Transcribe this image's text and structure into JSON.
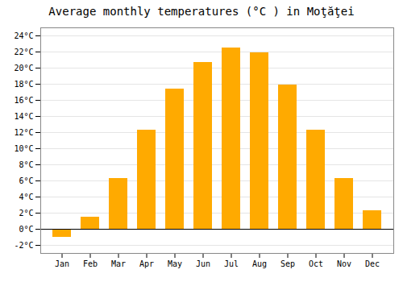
{
  "chart_data": {
    "type": "bar",
    "title": "Average monthly temperatures (°C ) in Moţăţei",
    "categories": [
      "Jan",
      "Feb",
      "Mar",
      "Apr",
      "May",
      "Jun",
      "Jul",
      "Aug",
      "Sep",
      "Oct",
      "Nov",
      "Dec"
    ],
    "values": [
      -1.0,
      1.5,
      6.3,
      12.3,
      17.4,
      20.7,
      22.5,
      21.9,
      17.9,
      12.3,
      6.3,
      2.3
    ],
    "color": "#FFAA00",
    "ylim": [
      -3,
      25
    ],
    "yticks": [
      {
        "value": -2,
        "label": "-2°C"
      },
      {
        "value": 0,
        "label": "0°C"
      },
      {
        "value": 2,
        "label": "2°C"
      },
      {
        "value": 4,
        "label": "4°C"
      },
      {
        "value": 6,
        "label": "6°C"
      },
      {
        "value": 8,
        "label": "8°C"
      },
      {
        "value": 10,
        "label": "10°C"
      },
      {
        "value": 12,
        "label": "12°C"
      },
      {
        "value": 14,
        "label": "14°C"
      },
      {
        "value": 16,
        "label": "16°C"
      },
      {
        "value": 18,
        "label": "18°C"
      },
      {
        "value": 20,
        "label": "20°C"
      },
      {
        "value": 22,
        "label": "22°C"
      },
      {
        "value": 24,
        "label": "24°C"
      }
    ],
    "grid": true
  }
}
